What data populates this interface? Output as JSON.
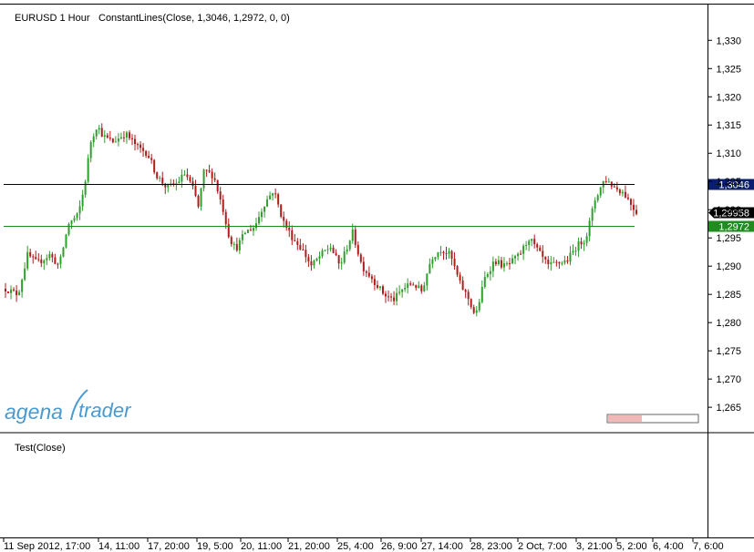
{
  "chart_title": "EURUSD 1 Hour",
  "indicator_label": "ConstantLines(Close, 1,3046, 1,2972, 0, 0)",
  "subpanel_label": "Test(Close)",
  "logo": {
    "part1": "agena",
    "part2": "trader"
  },
  "colors": {
    "up_candle": "#2e9e2e",
    "down_candle": "#b01c1c",
    "upper_line": "#000000",
    "lower_line": "#1e8c1e",
    "upper_badge": "#0a1e6e",
    "lower_badge": "#1e8c1e",
    "logo_blue": "#4a9ad0"
  },
  "chart_data": {
    "type": "candlestick",
    "y_axis": {
      "min": 1.2605,
      "max": 1.3365,
      "ticks": [
        1.265,
        1.27,
        1.275,
        1.28,
        1.285,
        1.29,
        1.295,
        1.3,
        1.305,
        1.31,
        1.315,
        1.32,
        1.325,
        1.33
      ],
      "tick_labels": [
        "1,265",
        "1,270",
        "1,275",
        "1,280",
        "1,285",
        "1,290",
        "1,295",
        "1,300",
        "1,305",
        "1,310",
        "1,315",
        "1,320",
        "1,325",
        "1,330"
      ]
    },
    "x_tick_labels": [
      "11 Sep 2012, 17:00",
      "14, 11:00",
      "17, 20:00",
      "19, 5:00",
      "20, 11:00",
      "21, 20:00",
      "25, 4:00",
      "26, 9:00",
      "27, 14:00",
      "28, 23:00",
      "2 Oct, 7:00",
      "3, 21:00",
      "5, 2:00",
      "6, 4:00",
      "7, 6:00"
    ],
    "constant_lines": [
      {
        "value": 1.3046,
        "label": "1,3046"
      },
      {
        "value": 1.2972,
        "label": "1,2972"
      }
    ],
    "last_price": {
      "value": 1.29958,
      "label": "1,29958"
    },
    "close_path": [
      [
        0.0,
        1.286
      ],
      [
        0.02,
        1.285
      ],
      [
        0.035,
        1.292
      ],
      [
        0.05,
        1.2905
      ],
      [
        0.07,
        1.292
      ],
      [
        0.085,
        1.29
      ],
      [
        0.1,
        1.2975
      ],
      [
        0.115,
        1.299
      ],
      [
        0.125,
        1.304
      ],
      [
        0.135,
        1.312
      ],
      [
        0.145,
        1.315
      ],
      [
        0.155,
        1.313
      ],
      [
        0.17,
        1.312
      ],
      [
        0.19,
        1.3135
      ],
      [
        0.21,
        1.311
      ],
      [
        0.225,
        1.31
      ],
      [
        0.24,
        1.306
      ],
      [
        0.255,
        1.304
      ],
      [
        0.27,
        1.3045
      ],
      [
        0.285,
        1.3065
      ],
      [
        0.3,
        1.303
      ],
      [
        0.305,
        1.3
      ],
      [
        0.315,
        1.307
      ],
      [
        0.33,
        1.306
      ],
      [
        0.345,
        1.3
      ],
      [
        0.355,
        1.295
      ],
      [
        0.365,
        1.293
      ],
      [
        0.38,
        1.296
      ],
      [
        0.395,
        1.297
      ],
      [
        0.41,
        1.301
      ],
      [
        0.425,
        1.3035
      ],
      [
        0.44,
        1.298
      ],
      [
        0.455,
        1.295
      ],
      [
        0.47,
        1.293
      ],
      [
        0.485,
        1.29
      ],
      [
        0.5,
        1.292
      ],
      [
        0.515,
        1.2935
      ],
      [
        0.53,
        1.29
      ],
      [
        0.55,
        1.296
      ],
      [
        0.565,
        1.29
      ],
      [
        0.58,
        1.288
      ],
      [
        0.6,
        1.285
      ],
      [
        0.615,
        1.284
      ],
      [
        0.63,
        1.286
      ],
      [
        0.645,
        1.287
      ],
      [
        0.66,
        1.2855
      ],
      [
        0.675,
        1.2915
      ],
      [
        0.69,
        1.293
      ],
      [
        0.705,
        1.292
      ],
      [
        0.72,
        1.287
      ],
      [
        0.735,
        1.284
      ],
      [
        0.745,
        1.281
      ],
      [
        0.76,
        1.288
      ],
      [
        0.775,
        1.291
      ],
      [
        0.79,
        1.29
      ],
      [
        0.8,
        1.2905
      ],
      [
        0.815,
        1.292
      ],
      [
        0.83,
        1.295
      ],
      [
        0.845,
        1.2925
      ],
      [
        0.86,
        1.29
      ],
      [
        0.875,
        1.2905
      ],
      [
        0.89,
        1.291
      ],
      [
        0.905,
        1.2935
      ],
      [
        0.92,
        1.295
      ],
      [
        0.935,
        1.302
      ],
      [
        0.95,
        1.3055
      ],
      [
        0.965,
        1.304
      ],
      [
        0.98,
        1.303
      ],
      [
        1.0,
        1.29958
      ]
    ]
  }
}
